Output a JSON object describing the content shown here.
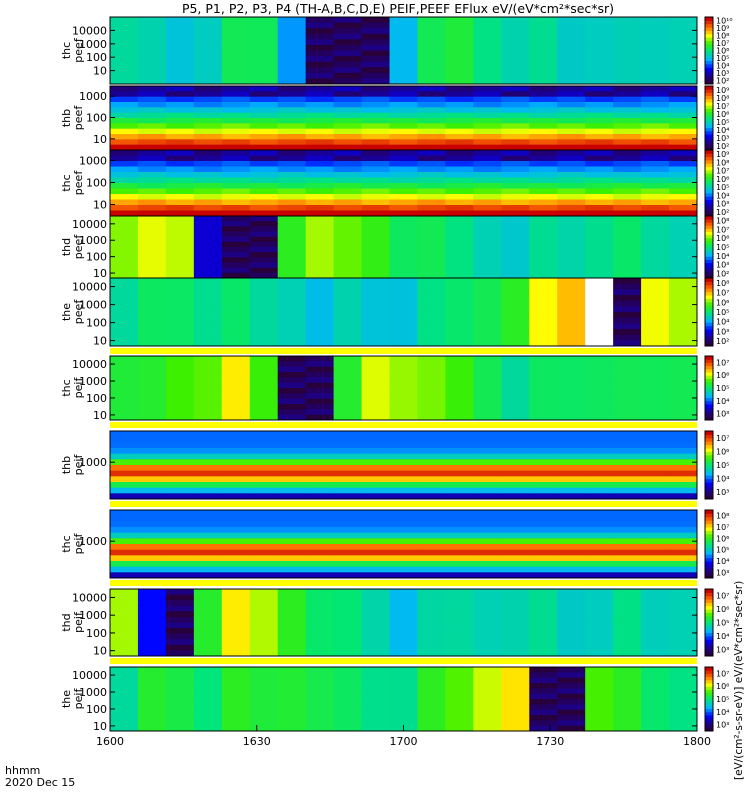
{
  "title": "P5, P1, P2, P3, P4 (TH-A,B,C,D,E) PEIF,PEEF EFlux eV/(eV*cm²*sec*sr)",
  "unit_label": "[eV/(cm²-s-sr-eV)] eV/(eV*cm²*sec*sr)",
  "time_axis": {
    "label_top": "hhmm",
    "label_bottom": "2020 Dec 15",
    "ticks": [
      "1600",
      "1630",
      "1700",
      "1730",
      "1800"
    ]
  },
  "chart_data": [
    {
      "type": "heatmap",
      "title": "thc peef",
      "ylabel": [
        "thc",
        "peef"
      ],
      "yticks": [
        "10",
        "100",
        "1000",
        "10000"
      ],
      "ylog": true,
      "cbar_ticks": [
        "10²",
        "10³",
        "10⁴",
        "10⁵",
        "10⁶",
        "10⁷",
        "10⁸",
        "10⁹",
        "10¹⁰"
      ]
    },
    {
      "type": "heatmap",
      "title": "thb peef",
      "ylabel": [
        "thb",
        "peef"
      ],
      "yticks": [
        "10",
        "100",
        "1000"
      ],
      "ylog": true,
      "cbar_ticks": [
        "10²",
        "10³",
        "10⁴",
        "10⁵",
        "10⁶",
        "10⁷",
        "10⁸",
        "10⁹"
      ]
    },
    {
      "type": "heatmap",
      "title": "thc peef",
      "ylabel": [
        "thc",
        "peef"
      ],
      "yticks": [
        "10",
        "100",
        "1000"
      ],
      "ylog": true,
      "cbar_ticks": [
        "10²",
        "10³",
        "10⁴",
        "10⁵",
        "10⁶",
        "10⁷",
        "10⁸",
        "10⁹"
      ]
    },
    {
      "type": "heatmap",
      "title": "thd peef",
      "ylabel": [
        "thd",
        "peef"
      ],
      "yticks": [
        "10",
        "100",
        "1000",
        "10000"
      ],
      "ylog": true,
      "cbar_ticks": [
        "10²",
        "10³",
        "10⁴",
        "10⁵",
        "10⁶",
        "10⁷",
        "10⁸"
      ]
    },
    {
      "type": "heatmap",
      "title": "the peef",
      "ylabel": [
        "the",
        "peef"
      ],
      "yticks": [
        "10",
        "100",
        "1000",
        "10000"
      ],
      "ylog": true,
      "cbar_ticks": [
        "10²",
        "10³",
        "10⁴",
        "10⁵",
        "10⁶",
        "10⁷",
        "10⁸"
      ]
    },
    {
      "type": "heatmap",
      "title": "thc peif",
      "ylabel": [
        "thc",
        "peif"
      ],
      "yticks": [
        "10",
        "100",
        "1000",
        "10000"
      ],
      "ylog": true,
      "cbar_ticks": [
        "10³",
        "10⁴",
        "10⁵",
        "10⁶",
        "10⁷"
      ]
    },
    {
      "type": "heatmap",
      "title": "thb peif",
      "ylabel": [
        "thb",
        "peif"
      ],
      "yticks": [
        "1000"
      ],
      "ylog": true,
      "cbar_ticks": [
        "10³",
        "10⁴",
        "10⁵",
        "10⁶",
        "10⁷"
      ]
    },
    {
      "type": "heatmap",
      "title": "thc peif",
      "ylabel": [
        "thc",
        "peif"
      ],
      "yticks": [
        "1000"
      ],
      "ylog": true,
      "cbar_ticks": [
        "10³",
        "10⁴",
        "10⁵",
        "10⁶",
        "10⁷",
        "10⁸"
      ]
    },
    {
      "type": "heatmap",
      "title": "thd peif",
      "ylabel": [
        "thd",
        "peif"
      ],
      "yticks": [
        "10",
        "100",
        "1000",
        "10000"
      ],
      "ylog": true,
      "cbar_ticks": [
        "10³",
        "10⁴",
        "10⁵",
        "10⁶",
        "10⁷"
      ]
    },
    {
      "type": "heatmap",
      "title": "the peif",
      "ylabel": [
        "the",
        "peif"
      ],
      "yticks": [
        "10",
        "100",
        "1000",
        "10000"
      ],
      "ylog": true,
      "cbar_ticks": [
        "10³",
        "10⁴",
        "10⁵",
        "10⁶",
        "10⁷"
      ]
    }
  ]
}
